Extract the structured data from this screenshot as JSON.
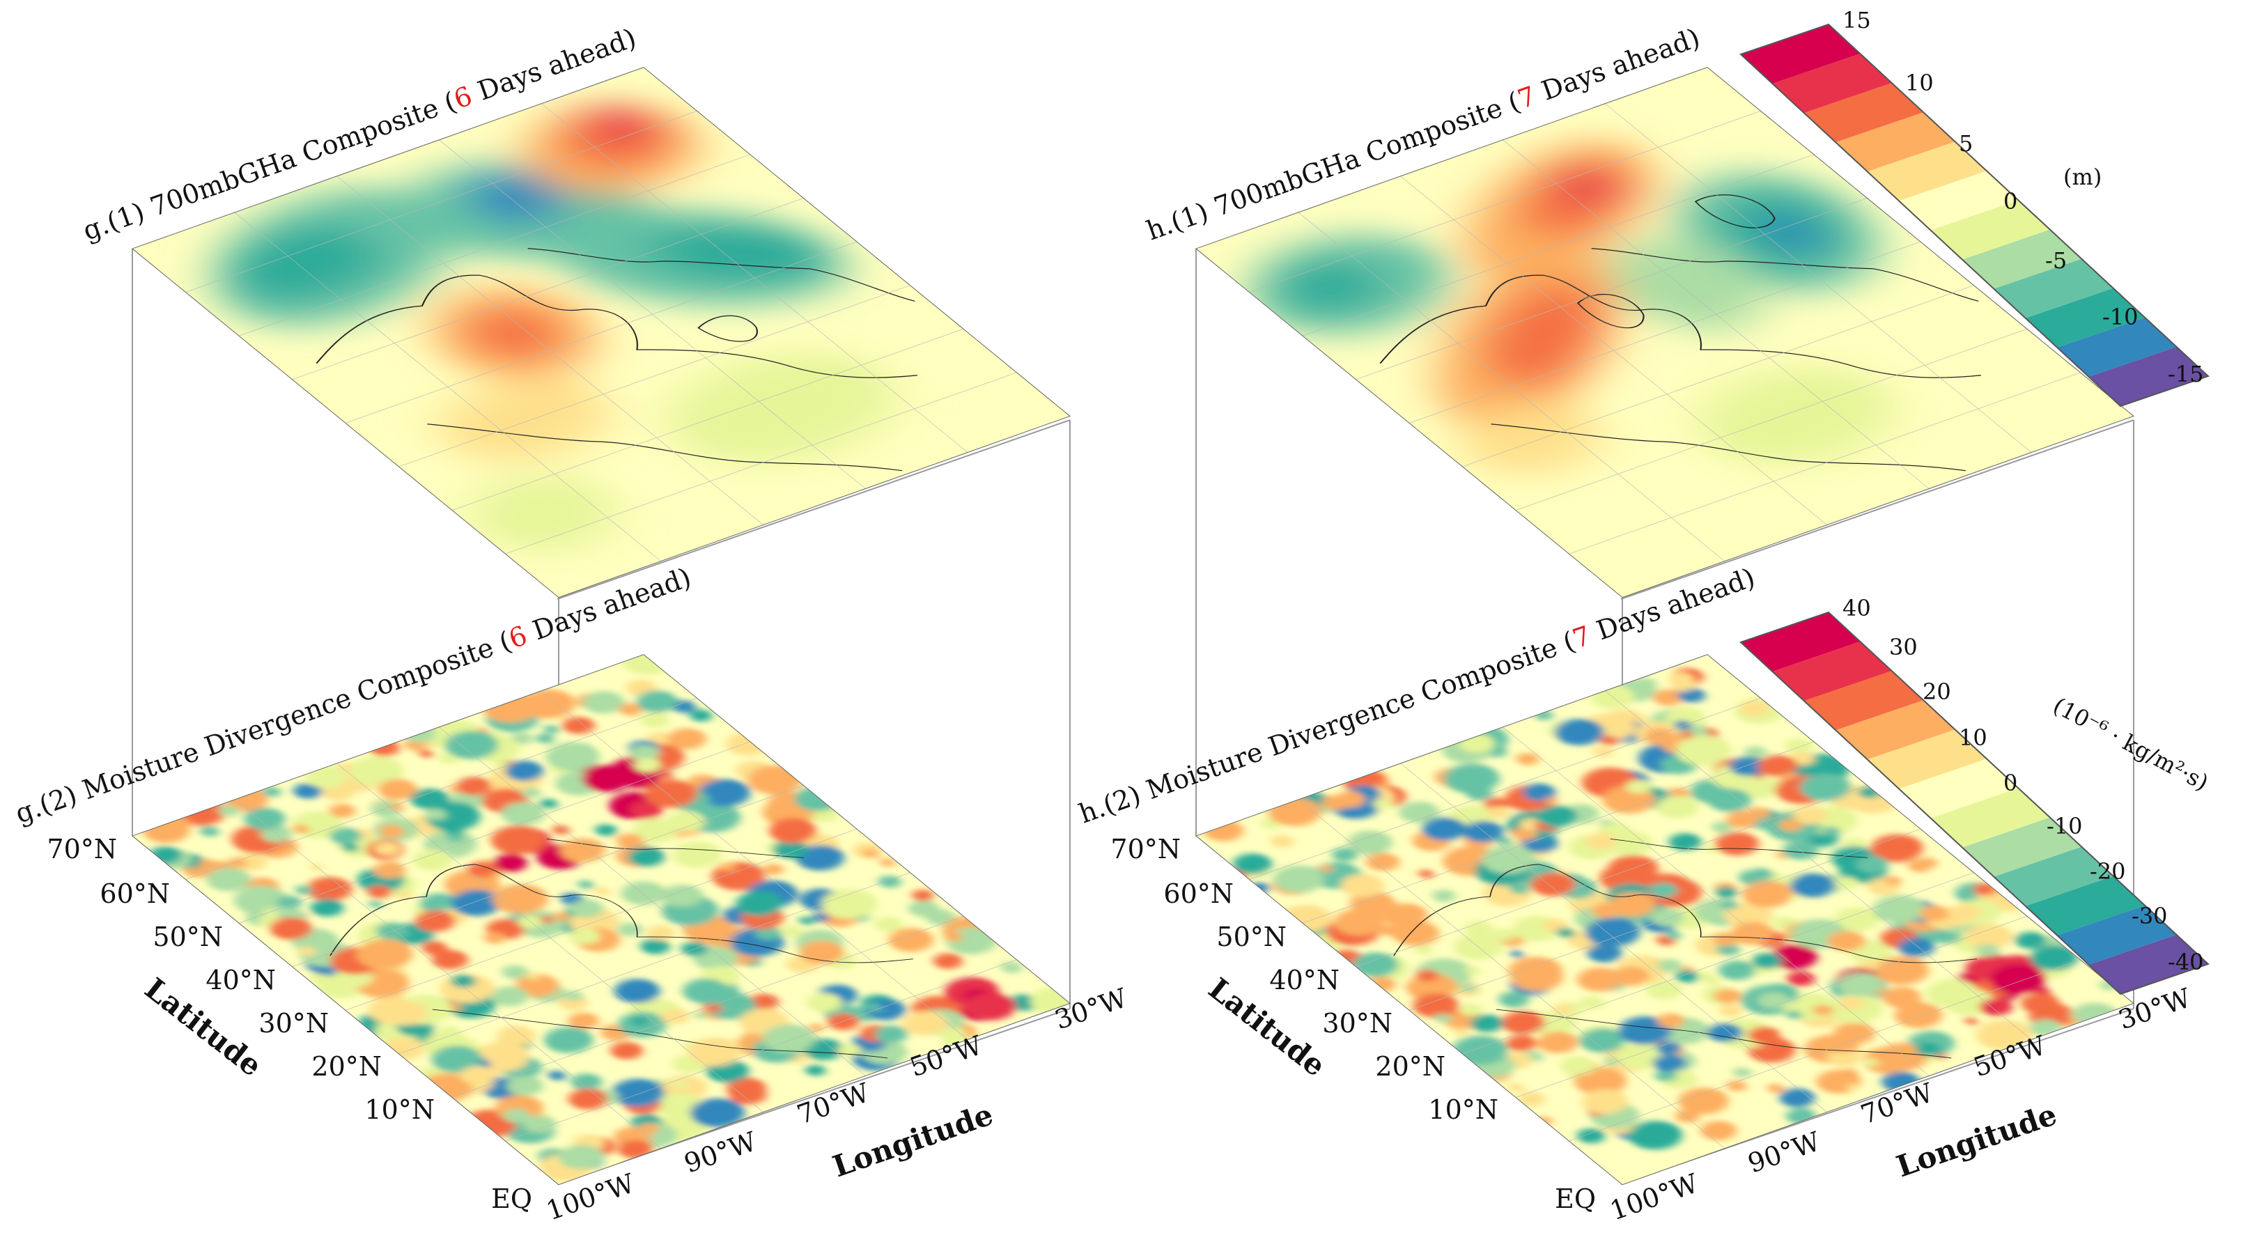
{
  "panels": [
    {
      "id": "g",
      "top_title": {
        "prefix": "g.(1) 700mbGHa Composite  (",
        "num": "6",
        "suffix": " Days ahead)"
      },
      "bottom_title": {
        "prefix": "g.(2) Moisture Divergence Composite (",
        "num": "6",
        "suffix": " Days ahead)"
      },
      "lat_ticks": [
        "70°N",
        "60°N",
        "50°N",
        "40°N",
        "30°N",
        "20°N",
        "10°N",
        "EQ"
      ],
      "lon_ticks": [
        "100°W",
        "90°W",
        "70°W",
        "50°W",
        "30°W"
      ],
      "lat_label": "Latitude",
      "lon_label": "Longitude"
    },
    {
      "id": "h",
      "top_title": {
        "prefix": "h.(1) 700mbGHa Composite (",
        "num": "7",
        "suffix": " Days ahead)"
      },
      "bottom_title": {
        "prefix": "h.(2) Moisture Divergence Composite (",
        "num": "7",
        "suffix": " Days ahead)"
      },
      "lat_ticks": [
        "70°N",
        "60°N",
        "50°N",
        "40°N",
        "30°N",
        "20°N",
        "10°N",
        "EQ"
      ],
      "lon_ticks": [
        "100°W",
        "90°W",
        "70°W",
        "50°W",
        "30°W"
      ],
      "lat_label": "Latitude",
      "lon_label": "Longitude"
    }
  ],
  "colorbars": [
    {
      "unit": "(m)",
      "labels": [
        "15",
        "10",
        "5",
        "0",
        "-5",
        "-10",
        "-15"
      ]
    },
    {
      "unit": "(10⁻⁶ · kg/m²·s)",
      "labels": [
        "40",
        "30",
        "20",
        "10",
        "0",
        "-10",
        "-20",
        "-30",
        "-40"
      ]
    }
  ],
  "palette": [
    "#d6004f",
    "#e8324b",
    "#f46d43",
    "#fdae61",
    "#fee08b",
    "#ffffbf",
    "#e6f598",
    "#abdda4",
    "#66c2a5",
    "#2bab9a",
    "#3288bd",
    "#6a51a3"
  ]
}
